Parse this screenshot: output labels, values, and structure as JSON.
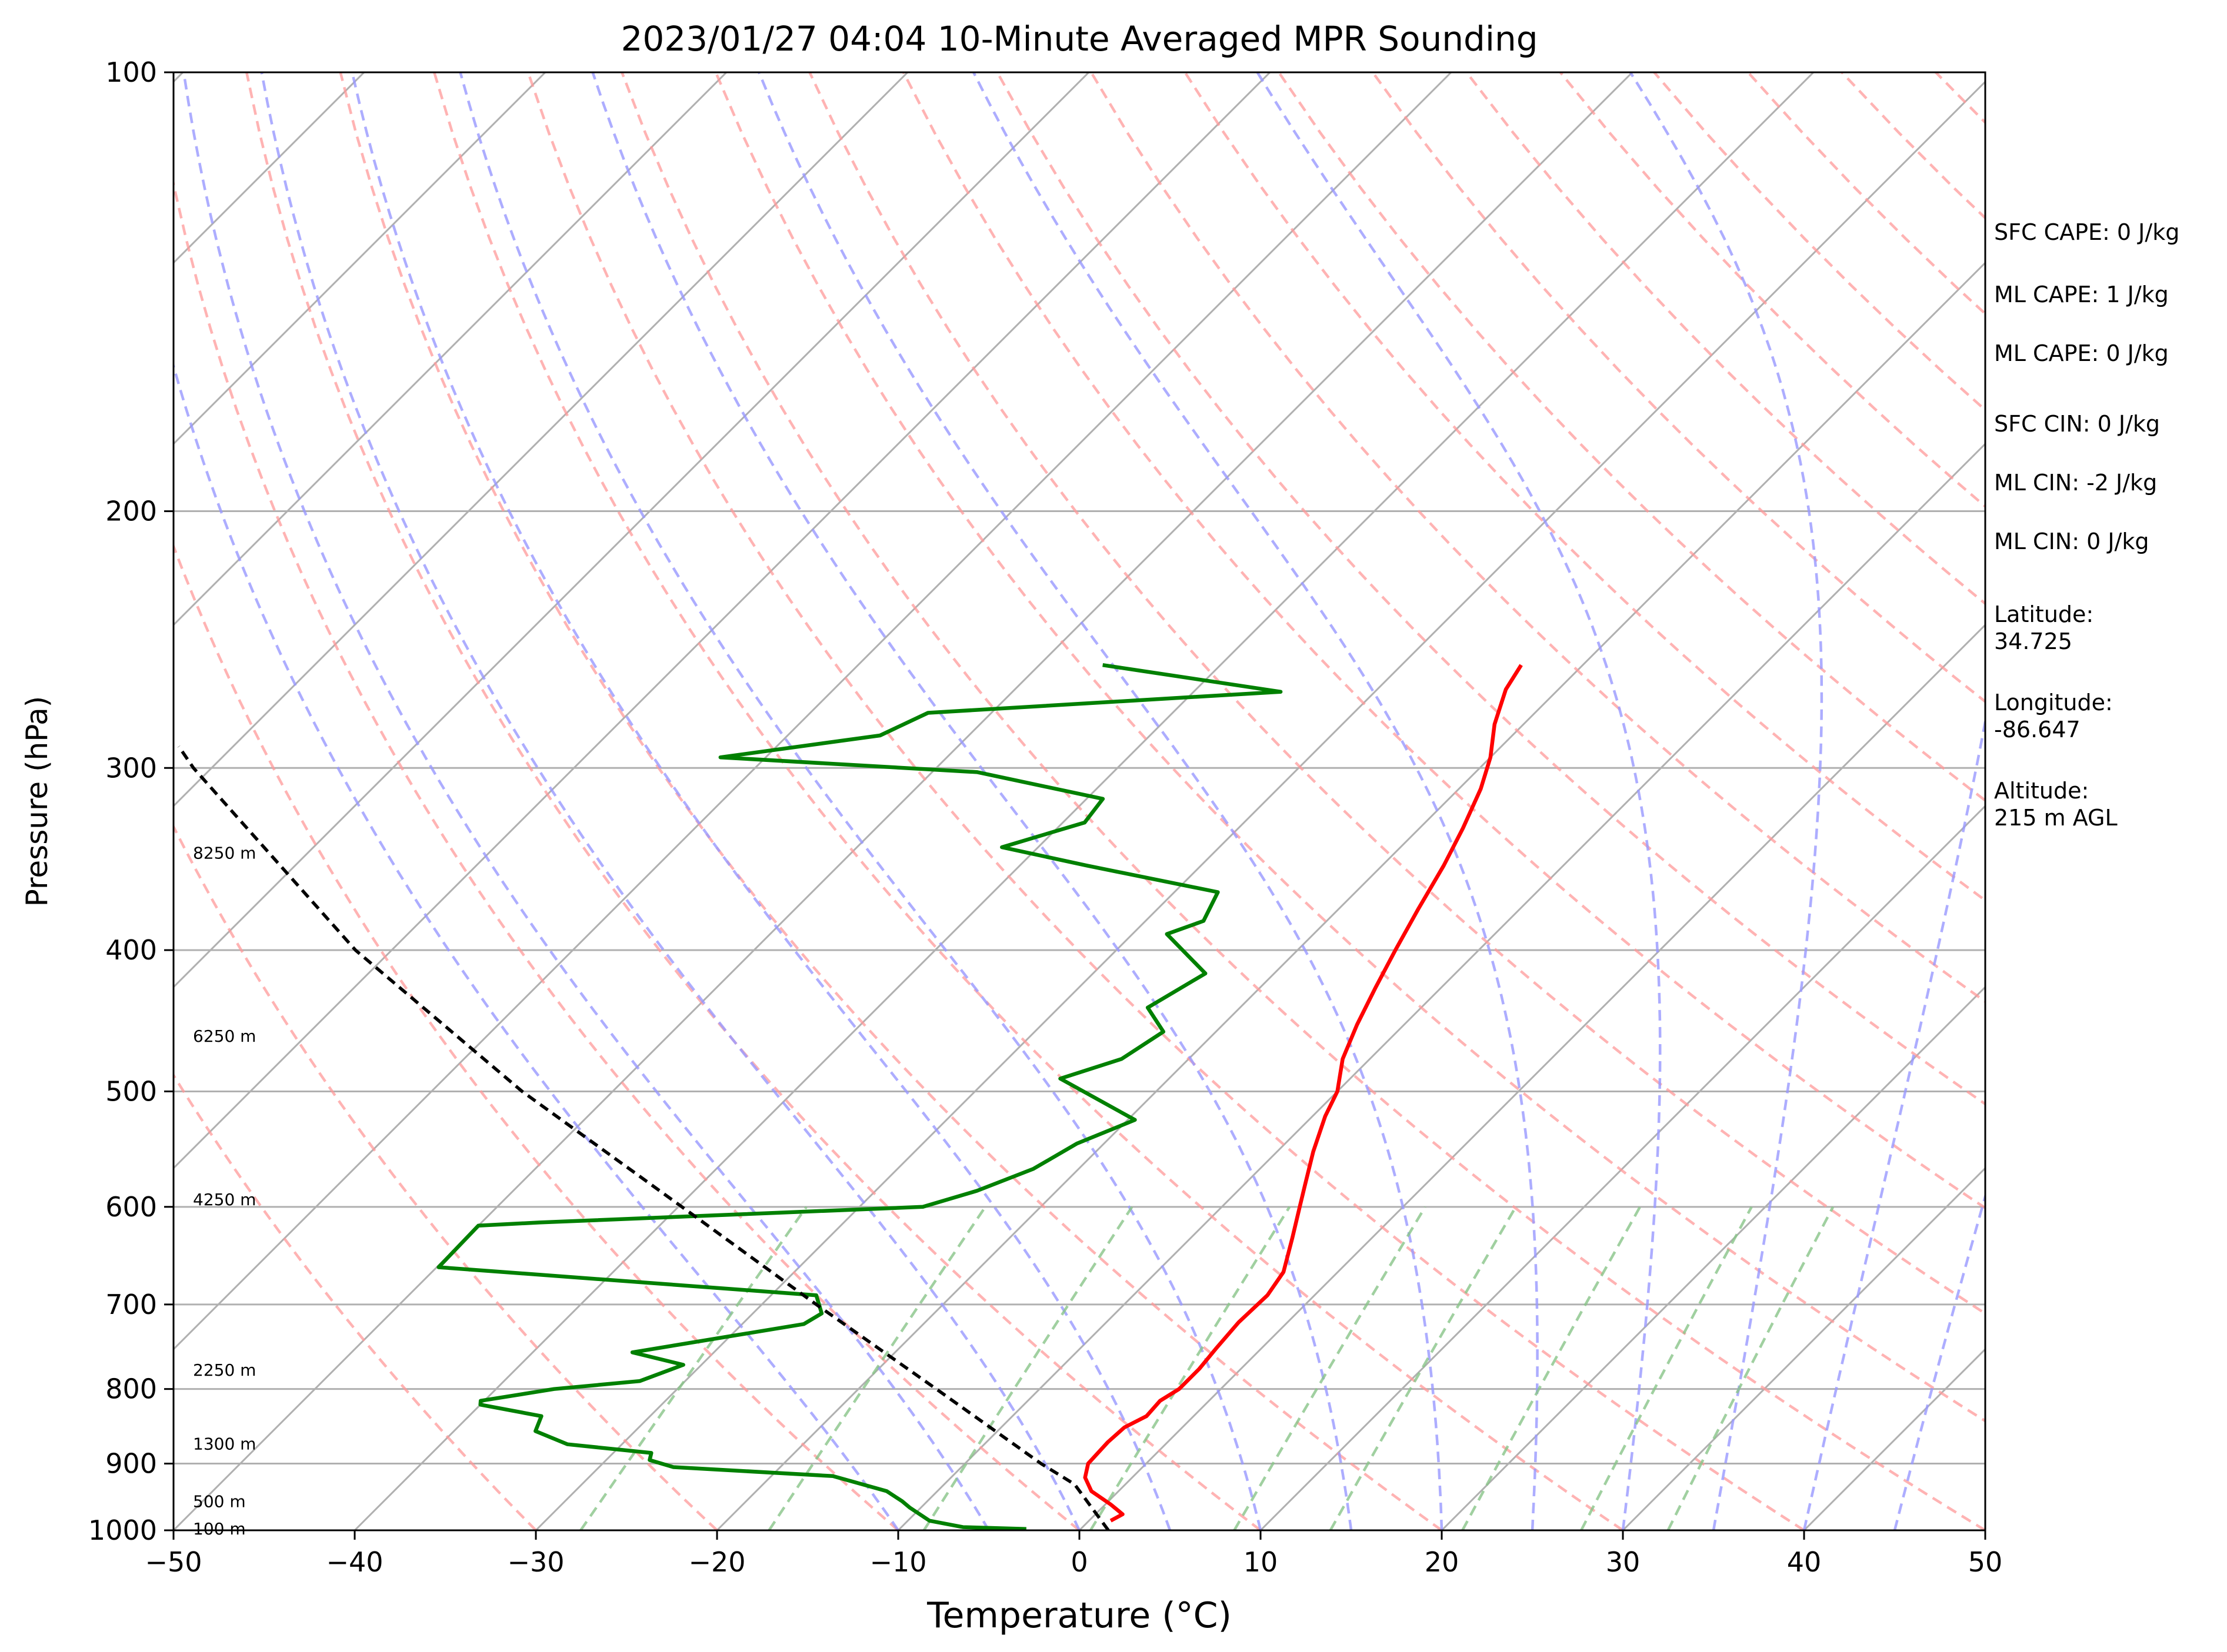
{
  "chart_data": {
    "type": "line",
    "title": "2023/01/27 04:04 10-Minute Averaged MPR Sounding",
    "xlabel": "Temperature (°C)",
    "ylabel": "Pressure (hPa)",
    "xlim": [
      -50,
      50
    ],
    "ylim": [
      1000,
      100
    ],
    "y_scale": "log",
    "grid": true,
    "x_ticks": [
      "−50",
      "−40",
      "−30",
      "−20",
      "−10",
      "0",
      "10",
      "20",
      "30",
      "40",
      "50"
    ],
    "y_ticks": [
      "100",
      "200",
      "300",
      "400",
      "500",
      "600",
      "700",
      "800",
      "900",
      "1000"
    ],
    "height_labels": [
      {
        "p": 997,
        "label": "100 m"
      },
      {
        "p": 955,
        "label": "500 m"
      },
      {
        "p": 872,
        "label": "1300 m"
      },
      {
        "p": 776,
        "label": "2250 m"
      },
      {
        "p": 593,
        "label": "4250 m"
      },
      {
        "p": 458,
        "label": "6250 m"
      },
      {
        "p": 343,
        "label": "8250 m"
      }
    ],
    "series": [
      {
        "color": "#ff0000",
        "points": [
          {
            "p": 985,
            "t": 1.2
          },
          {
            "p": 975,
            "t": 1.5
          },
          {
            "p": 960,
            "t": 0.3
          },
          {
            "p": 940,
            "t": -1.5
          },
          {
            "p": 920,
            "t": -2.6
          },
          {
            "p": 900,
            "t": -3.2
          },
          {
            "p": 870,
            "t": -3.3
          },
          {
            "p": 850,
            "t": -3.2
          },
          {
            "p": 835,
            "t": -2.6
          },
          {
            "p": 815,
            "t": -2.7
          },
          {
            "p": 800,
            "t": -2.3
          },
          {
            "p": 775,
            "t": -2.3
          },
          {
            "p": 750,
            "t": -2.5
          },
          {
            "p": 720,
            "t": -2.7
          },
          {
            "p": 690,
            "t": -2.6
          },
          {
            "p": 665,
            "t": -3.0
          },
          {
            "p": 630,
            "t": -4.4
          },
          {
            "p": 600,
            "t": -5.7
          },
          {
            "p": 580,
            "t": -6.6
          },
          {
            "p": 550,
            "t": -8.0
          },
          {
            "p": 520,
            "t": -9.3
          },
          {
            "p": 500,
            "t": -10.0
          },
          {
            "p": 475,
            "t": -11.5
          },
          {
            "p": 450,
            "t": -12.6
          },
          {
            "p": 425,
            "t": -13.6
          },
          {
            "p": 400,
            "t": -14.6
          },
          {
            "p": 375,
            "t": -15.6
          },
          {
            "p": 350,
            "t": -16.6
          },
          {
            "p": 330,
            "t": -17.6
          },
          {
            "p": 310,
            "t": -18.8
          },
          {
            "p": 295,
            "t": -20.0
          },
          {
            "p": 280,
            "t": -21.6
          },
          {
            "p": 265,
            "t": -22.9
          },
          {
            "p": 255,
            "t": -23.4
          }
        ]
      },
      {
        "color": "#008000",
        "points": [
          {
            "p": 998,
            "t": -3.0
          },
          {
            "p": 995,
            "t": -6.6
          },
          {
            "p": 985,
            "t": -8.8
          },
          {
            "p": 965,
            "t": -10.6
          },
          {
            "p": 955,
            "t": -11.4
          },
          {
            "p": 940,
            "t": -12.8
          },
          {
            "p": 918,
            "t": -16.6
          },
          {
            "p": 905,
            "t": -25.9
          },
          {
            "p": 895,
            "t": -27.6
          },
          {
            "p": 885,
            "t": -27.9
          },
          {
            "p": 873,
            "t": -33.0
          },
          {
            "p": 855,
            "t": -35.5
          },
          {
            "p": 835,
            "t": -36.0
          },
          {
            "p": 820,
            "t": -40.0
          },
          {
            "p": 815,
            "t": -40.2
          },
          {
            "p": 800,
            "t": -36.8
          },
          {
            "p": 790,
            "t": -32.5
          },
          {
            "p": 770,
            "t": -31.0
          },
          {
            "p": 755,
            "t": -34.5
          },
          {
            "p": 722,
            "t": -26.6
          },
          {
            "p": 710,
            "t": -26.2
          },
          {
            "p": 690,
            "t": -27.5
          },
          {
            "p": 660,
            "t": -49.9
          },
          {
            "p": 618,
            "t": -50.0
          },
          {
            "p": 615,
            "t": -46.8
          },
          {
            "p": 600,
            "t": -26.5
          },
          {
            "p": 585,
            "t": -24.4
          },
          {
            "p": 565,
            "t": -22.5
          },
          {
            "p": 543,
            "t": -21.5
          },
          {
            "p": 523,
            "t": -19.6
          },
          {
            "p": 490,
            "t": -26.0
          },
          {
            "p": 475,
            "t": -23.7
          },
          {
            "p": 455,
            "t": -22.9
          },
          {
            "p": 438,
            "t": -25.1
          },
          {
            "p": 415,
            "t": -23.8
          },
          {
            "p": 390,
            "t": -28.1
          },
          {
            "p": 382,
            "t": -26.8
          },
          {
            "p": 365,
            "t": -27.6
          },
          {
            "p": 350,
            "t": -36.3
          },
          {
            "p": 340,
            "t": -42.0
          },
          {
            "p": 327,
            "t": -38.8
          },
          {
            "p": 315,
            "t": -39.1
          },
          {
            "p": 302,
            "t": -47.5
          },
          {
            "p": 295,
            "t": -62.5
          },
          {
            "p": 285,
            "t": -54.9
          },
          {
            "p": 275,
            "t": -53.5
          },
          {
            "p": 266,
            "t": -35.2
          },
          {
            "p": 255,
            "t": -46.5
          }
        ]
      },
      {
        "color": "#000000",
        "style": "dashed",
        "points": [
          {
            "p": 1000,
            "t": 1.6
          },
          {
            "p": 930,
            "t": -2.8
          },
          {
            "p": 900,
            "t": -5.8
          },
          {
            "p": 800,
            "t": -15.7
          },
          {
            "p": 700,
            "t": -27.0
          },
          {
            "p": 600,
            "t": -39.8
          },
          {
            "p": 500,
            "t": -55.0
          },
          {
            "p": 400,
            "t": -72.0
          },
          {
            "p": 300,
            "t": -91.0
          },
          {
            "p": 290,
            "t": -93.0
          }
        ]
      }
    ]
  },
  "side_panel": {
    "sfc_cape": "SFC CAPE: 0 J/kg",
    "ml_cape_1": "ML CAPE: 1 J/kg",
    "ml_cape_2": "ML CAPE: 0 J/kg",
    "sfc_cin": "SFC CIN: 0 J/kg",
    "ml_cin_1": "ML CIN: -2 J/kg",
    "ml_cin_2": "ML CIN: 0 J/kg",
    "latitude": "Latitude:\n34.725",
    "longitude": "Longitude:\n-86.647",
    "altitude": "Altitude:\n215 m AGL"
  },
  "colors": {
    "isobar_isotherm": "#b0b0b0",
    "dry_adiabat": "#ff9999",
    "moist_adiabat": "#9999ff",
    "mixing_ratio": "#88c488",
    "temperature": "#ff0000",
    "dewpoint": "#008000",
    "parcel": "#000000"
  }
}
